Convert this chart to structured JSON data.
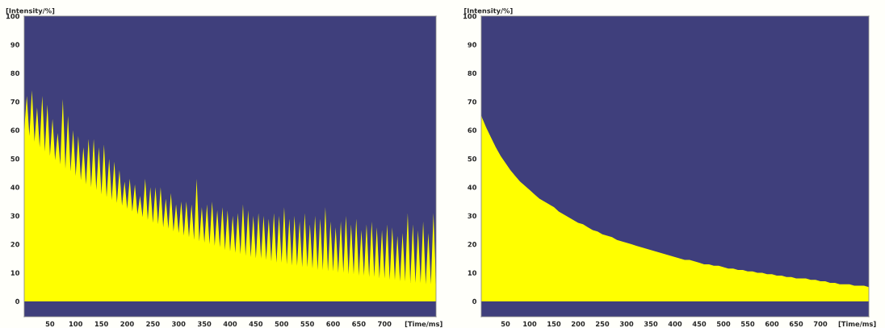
{
  "chart_data": [
    {
      "type": "area",
      "xlabel": "[Time/ms]",
      "ylabel": "[Intensity/%]",
      "xlim": [
        0,
        800
      ],
      "ylim": [
        -5.4,
        100
      ],
      "xticks": [
        50,
        100,
        150,
        200,
        250,
        300,
        350,
        400,
        450,
        500,
        550,
        600,
        650,
        700
      ],
      "yticks": [
        0,
        10,
        20,
        30,
        40,
        50,
        60,
        70,
        80,
        90,
        100
      ],
      "grid": false,
      "series": [
        {
          "color": "#ffff00",
          "x": [
            0,
            5,
            10,
            15,
            20,
            25,
            30,
            35,
            40,
            45,
            50,
            55,
            60,
            65,
            70,
            75,
            80,
            85,
            90,
            95,
            100,
            105,
            110,
            115,
            120,
            125,
            130,
            135,
            140,
            145,
            150,
            155,
            160,
            165,
            170,
            175,
            180,
            185,
            190,
            195,
            200,
            205,
            210,
            215,
            220,
            225,
            230,
            235,
            240,
            245,
            250,
            255,
            260,
            265,
            270,
            275,
            280,
            285,
            290,
            295,
            300,
            305,
            310,
            315,
            320,
            325,
            330,
            335,
            340,
            345,
            350,
            355,
            360,
            365,
            370,
            375,
            380,
            385,
            390,
            395,
            400,
            405,
            410,
            415,
            420,
            425,
            430,
            435,
            440,
            445,
            450,
            455,
            460,
            465,
            470,
            475,
            480,
            485,
            490,
            495,
            500,
            505,
            510,
            515,
            520,
            525,
            530,
            535,
            540,
            545,
            550,
            555,
            560,
            565,
            570,
            575,
            580,
            585,
            590,
            595,
            600,
            605,
            610,
            615,
            620,
            625,
            630,
            635,
            640,
            645,
            650,
            655,
            660,
            665,
            670,
            675,
            680,
            685,
            690,
            695,
            700,
            705,
            710,
            715,
            720,
            725,
            730,
            735,
            740,
            745,
            750,
            755,
            760,
            765,
            770,
            775,
            780,
            785,
            790,
            795,
            800
          ],
          "values": [
            60,
            72,
            58,
            74,
            56,
            68,
            54,
            72,
            52.5,
            69,
            51,
            64,
            49.5,
            59,
            48,
            71,
            46.5,
            65,
            45.5,
            60,
            44,
            58,
            42.5,
            54,
            41,
            57,
            40,
            57,
            39,
            54,
            37.5,
            55,
            36.5,
            50,
            35.5,
            49,
            34.5,
            46,
            33.5,
            42,
            32.5,
            43,
            31.5,
            41,
            30.5,
            37,
            29.5,
            43,
            28.5,
            40,
            27.5,
            40,
            27,
            40,
            26,
            36,
            25.5,
            38,
            24.5,
            34,
            24,
            35,
            23,
            35,
            22.5,
            34,
            21.5,
            43,
            21,
            33,
            20.5,
            34,
            20,
            35,
            19.5,
            32,
            19,
            33,
            18,
            32,
            17.5,
            30,
            17,
            31,
            16.5,
            34,
            16,
            32,
            15.5,
            30,
            15,
            31,
            15,
            30,
            14.5,
            29,
            14,
            31,
            13.5,
            30,
            13.5,
            33,
            13,
            29,
            12.5,
            30,
            12.5,
            28,
            12,
            31,
            12,
            27,
            11.5,
            30,
            11,
            29,
            11,
            33,
            10.5,
            28,
            10.5,
            26,
            10,
            28,
            10,
            30,
            9.5,
            27,
            9.5,
            29,
            9,
            25,
            9,
            27,
            8.5,
            28,
            8.5,
            26,
            8,
            25,
            8,
            27,
            7.5,
            26,
            7.5,
            23,
            7,
            24,
            7,
            31,
            6.5,
            27,
            6.5,
            25,
            6.5,
            28,
            6,
            24,
            6,
            31,
            6
          ]
        }
      ]
    },
    {
      "type": "area",
      "xlabel": "[Time/ms]",
      "ylabel": "[Intensity/%]",
      "xlim": [
        0,
        800
      ],
      "ylim": [
        -5.4,
        100
      ],
      "xticks": [
        50,
        100,
        150,
        200,
        250,
        300,
        350,
        400,
        450,
        500,
        550,
        600,
        650,
        700
      ],
      "yticks": [
        0,
        10,
        20,
        30,
        40,
        50,
        60,
        70,
        80,
        90,
        100
      ],
      "grid": false,
      "series": [
        {
          "color": "#ffff00",
          "x": [
            0,
            10,
            20,
            30,
            40,
            50,
            60,
            70,
            80,
            90,
            100,
            110,
            120,
            130,
            140,
            150,
            160,
            170,
            180,
            190,
            200,
            210,
            220,
            230,
            240,
            250,
            260,
            270,
            280,
            290,
            300,
            310,
            320,
            330,
            340,
            350,
            360,
            370,
            380,
            390,
            400,
            410,
            420,
            430,
            440,
            450,
            460,
            470,
            480,
            490,
            500,
            510,
            520,
            530,
            540,
            550,
            560,
            570,
            580,
            590,
            600,
            610,
            620,
            630,
            640,
            650,
            660,
            670,
            680,
            690,
            700,
            710,
            720,
            730,
            740,
            750,
            760,
            770,
            780,
            790,
            800
          ],
          "values": [
            65,
            61,
            57.5,
            54,
            51,
            48.5,
            46,
            44,
            42,
            40.5,
            39,
            37.5,
            36,
            35,
            34,
            33,
            31.5,
            30.5,
            29.5,
            28.5,
            27.5,
            27,
            26,
            25,
            24.5,
            23.5,
            23,
            22.5,
            21.5,
            21,
            20.5,
            20,
            19.5,
            19,
            18.5,
            18,
            17.5,
            17,
            16.5,
            16,
            15.5,
            15,
            14.5,
            14.5,
            14,
            13.5,
            13,
            13,
            12.5,
            12.5,
            12,
            11.5,
            11.5,
            11,
            11,
            10.5,
            10.5,
            10,
            10,
            9.5,
            9.5,
            9,
            9,
            8.5,
            8.5,
            8,
            8,
            8,
            7.5,
            7.5,
            7,
            7,
            6.5,
            6.5,
            6,
            6,
            6,
            5.5,
            5.5,
            5.5,
            5
          ]
        }
      ]
    }
  ]
}
